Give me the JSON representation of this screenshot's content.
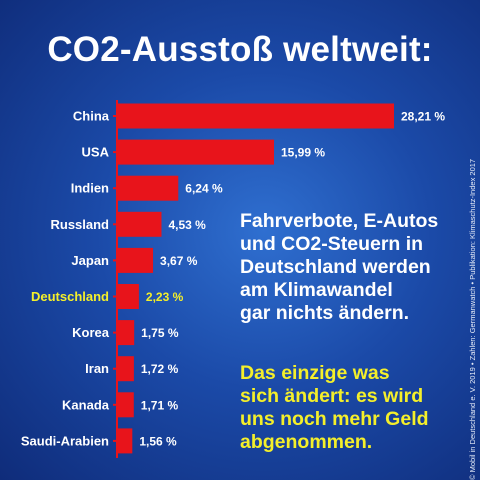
{
  "title": "CO2-Ausstoß weltweit:",
  "colors": {
    "bar": "#e8141b",
    "axis": "#e8141b",
    "label_default": "#ffffff",
    "label_highlight": "#f4ef2a"
  },
  "chart_data": {
    "type": "bar",
    "orientation": "horizontal",
    "categories": [
      "China",
      "USA",
      "Indien",
      "Russland",
      "Japan",
      "Deutschland",
      "Korea",
      "Iran",
      "Kanada",
      "Saudi-Arabien"
    ],
    "values": [
      28.21,
      15.99,
      6.24,
      4.53,
      3.67,
      2.23,
      1.75,
      1.72,
      1.71,
      1.56
    ],
    "value_labels": [
      "28,21 %",
      "15,99 %",
      "6,24 %",
      "4,53 %",
      "3,67 %",
      "2,23 %",
      "1,75 %",
      "1,72 %",
      "1,71 %",
      "1,56 %"
    ],
    "highlighted_category": "Deutschland",
    "xlim": [
      0,
      28.21
    ],
    "grid": false,
    "title": "CO2-Ausstoß weltweit:"
  },
  "text_white": {
    "lines": [
      "Fahrverbote, E-Autos",
      "und CO2-Steuern in",
      "Deutschland werden",
      "am Klimawandel",
      "gar nichts ändern."
    ]
  },
  "text_yellow": {
    "lines": [
      "Das einzige was",
      "sich ändert: es wird",
      "uns noch mehr Geld",
      "abgenommen."
    ]
  },
  "credit": "© Mobil in Deutschland e. V. 2019  •  Zahlen: Germanwatch  •  Publikation: Klimaschutz-Index 2017"
}
